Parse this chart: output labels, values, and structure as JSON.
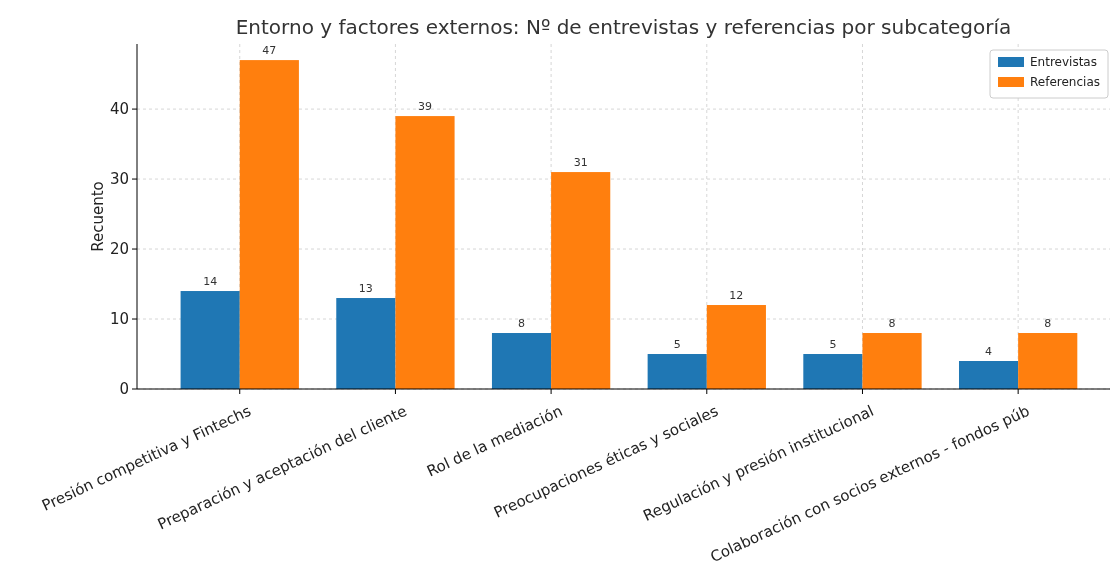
{
  "chart_data": {
    "type": "bar",
    "title": "Entorno y factores externos: Nº de entrevistas y referencias por subcategoría",
    "ylabel": "Recuento",
    "categories": [
      "Presión competitiva y Fintechs",
      "Preparación y aceptación del cliente",
      "Rol de la mediación",
      "Preocupaciones éticas y sociales",
      "Regulación y presión institucional",
      "Colaboración con socios externos - fondos púb"
    ],
    "series": [
      {
        "name": "Entrevistas",
        "color": "#1f77b4",
        "values": [
          14,
          13,
          8,
          5,
          5,
          4
        ]
      },
      {
        "name": "Referencias",
        "color": "#ff7f0e",
        "values": [
          47,
          39,
          31,
          12,
          8,
          8
        ]
      }
    ],
    "ylim": [
      0,
      49.3
    ],
    "yticks": [
      0,
      10,
      20,
      30,
      40
    ],
    "grid": true,
    "legend": "top right",
    "data_labels": true
  }
}
